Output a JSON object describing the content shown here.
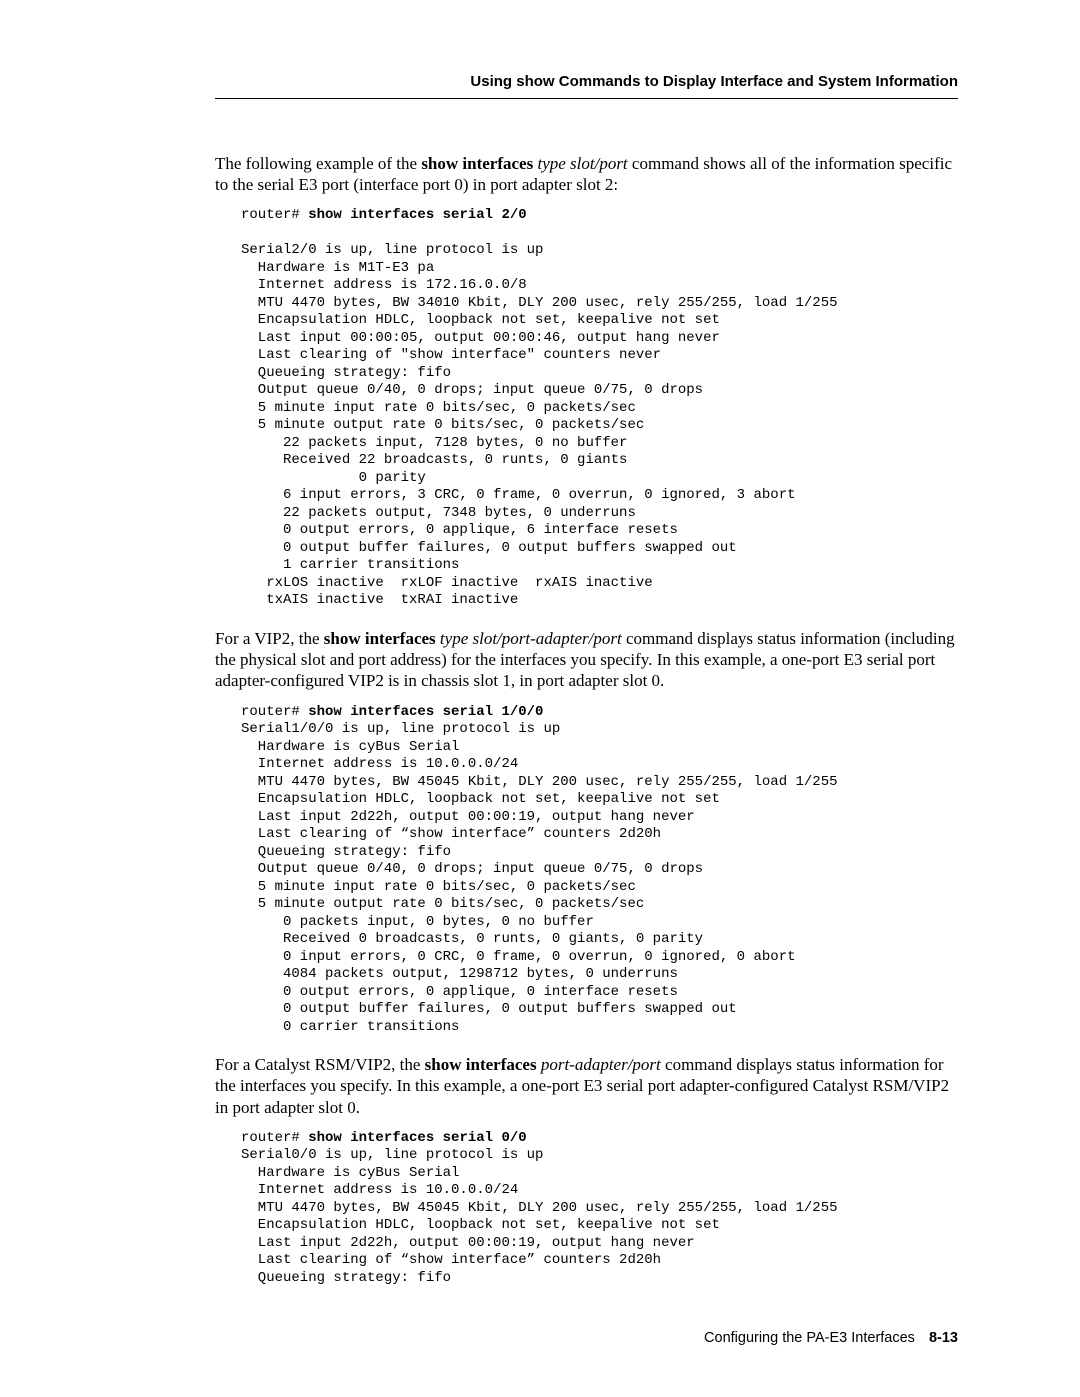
{
  "running_head": "Using show Commands to Display Interface and System Information",
  "para1_a": "The following example of the ",
  "para1_b": "show interfaces",
  "para1_c": " type slot/port",
  "para1_d": " command shows all of the information specific to the serial E3 port (interface port 0) in port adapter slot 2:",
  "code1_prompt": "router# ",
  "code1_cmd": "show interfaces serial 2/0",
  "code1_body": "\nSerial2/0 is up, line protocol is up\n  Hardware is M1T-E3 pa\n  Internet address is 172.16.0.0/8\n  MTU 4470 bytes, BW 34010 Kbit, DLY 200 usec, rely 255/255, load 1/255\n  Encapsulation HDLC, loopback not set, keepalive not set\n  Last input 00:00:05, output 00:00:46, output hang never\n  Last clearing of \"show interface\" counters never\n  Queueing strategy: fifo\n  Output queue 0/40, 0 drops; input queue 0/75, 0 drops\n  5 minute input rate 0 bits/sec, 0 packets/sec\n  5 minute output rate 0 bits/sec, 0 packets/sec\n     22 packets input, 7128 bytes, 0 no buffer\n     Received 22 broadcasts, 0 runts, 0 giants\n              0 parity\n     6 input errors, 3 CRC, 0 frame, 0 overrun, 0 ignored, 3 abort\n     22 packets output, 7348 bytes, 0 underruns\n     0 output errors, 0 applique, 6 interface resets\n     0 output buffer failures, 0 output buffers swapped out\n     1 carrier transitions\n   rxLOS inactive  rxLOF inactive  rxAIS inactive\n   txAIS inactive  txRAI inactive",
  "para2_a": "For a VIP2, the ",
  "para2_b": "show interfaces",
  "para2_c": " type slot/port-adapter/port",
  "para2_d": " command displays status information (including the physical slot and port address) for the interfaces you specify. In this example, a one-port E3 serial port adapter-configured VIP2 is in chassis slot 1, in port adapter slot 0.",
  "code2_prompt": "router# ",
  "code2_cmd": "show interfaces serial 1/0/0",
  "code2_body": "Serial1/0/0 is up, line protocol is up\n  Hardware is cyBus Serial\n  Internet address is 10.0.0.0/24\n  MTU 4470 bytes, BW 45045 Kbit, DLY 200 usec, rely 255/255, load 1/255\n  Encapsulation HDLC, loopback not set, keepalive not set\n  Last input 2d22h, output 00:00:19, output hang never\n  Last clearing of “show interface” counters 2d20h\n  Queueing strategy: fifo\n  Output queue 0/40, 0 drops; input queue 0/75, 0 drops\n  5 minute input rate 0 bits/sec, 0 packets/sec\n  5 minute output rate 0 bits/sec, 0 packets/sec\n     0 packets input, 0 bytes, 0 no buffer\n     Received 0 broadcasts, 0 runts, 0 giants, 0 parity\n     0 input errors, 0 CRC, 0 frame, 0 overrun, 0 ignored, 0 abort\n     4084 packets output, 1298712 bytes, 0 underruns\n     0 output errors, 0 applique, 0 interface resets\n     0 output buffer failures, 0 output buffers swapped out\n     0 carrier transitions",
  "para3_a": "For a Catalyst RSM/VIP2, the ",
  "para3_b": "show interfaces",
  "para3_c": " port-adapter/port",
  "para3_d": " command displays status information for the interfaces you specify. In this example, a one-port E3 serial port adapter-configured Catalyst RSM/VIP2 in port adapter slot 0.",
  "code3_prompt": "router# ",
  "code3_cmd": "show interfaces serial 0/0",
  "code3_body": "Serial0/0 is up, line protocol is up\n  Hardware is cyBus Serial\n  Internet address is 10.0.0.0/24\n  MTU 4470 bytes, BW 45045 Kbit, DLY 200 usec, rely 255/255, load 1/255\n  Encapsulation HDLC, loopback not set, keepalive not set\n  Last input 2d22h, output 00:00:19, output hang never\n  Last clearing of “show interface” counters 2d20h\n  Queueing strategy: fifo",
  "footer_text": "Configuring the PA-E3 Interfaces",
  "footer_page": "8-13"
}
